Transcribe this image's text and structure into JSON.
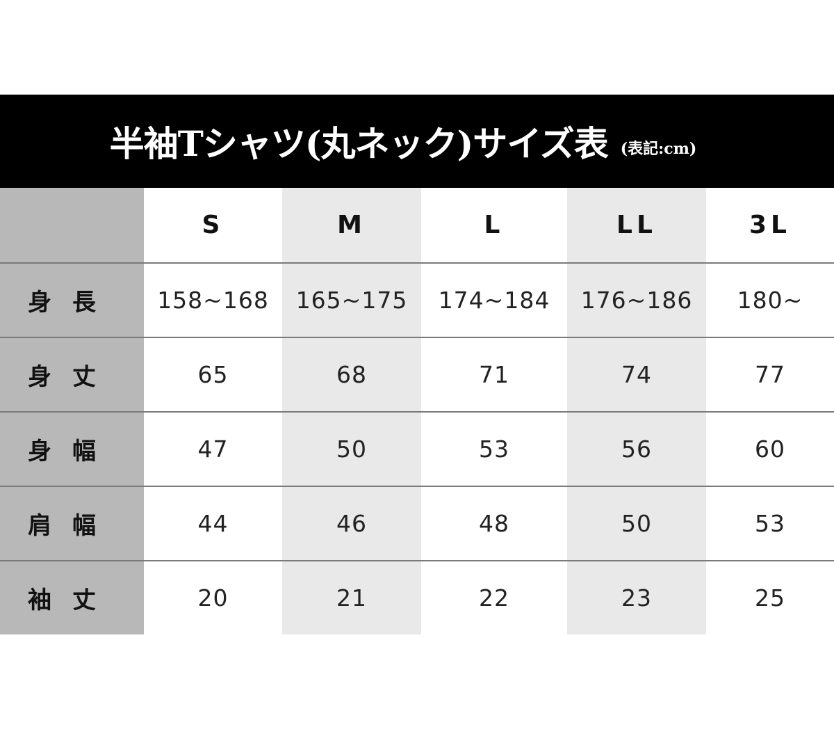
{
  "header": {
    "title": "半袖Tシャツ(丸ネック)サイズ表",
    "unit_note": "(表記:cm)"
  },
  "colors": {
    "header_bg": "#000000",
    "label_col": "#b8b8b8",
    "alt_col": "#e9e9e9",
    "divider": "#7a7a7a"
  },
  "table": {
    "columns": [
      "S",
      "M",
      "L",
      "LL",
      "3L"
    ],
    "rows": [
      {
        "label": "身長",
        "values": [
          "158~168",
          "165~175",
          "174~184",
          "176~186",
          "180~"
        ]
      },
      {
        "label": "身丈",
        "values": [
          "65",
          "68",
          "71",
          "74",
          "77"
        ]
      },
      {
        "label": "身幅",
        "values": [
          "47",
          "50",
          "53",
          "56",
          "60"
        ]
      },
      {
        "label": "肩幅",
        "values": [
          "44",
          "46",
          "48",
          "50",
          "53"
        ]
      },
      {
        "label": "袖丈",
        "values": [
          "20",
          "21",
          "22",
          "23",
          "25"
        ]
      }
    ]
  }
}
